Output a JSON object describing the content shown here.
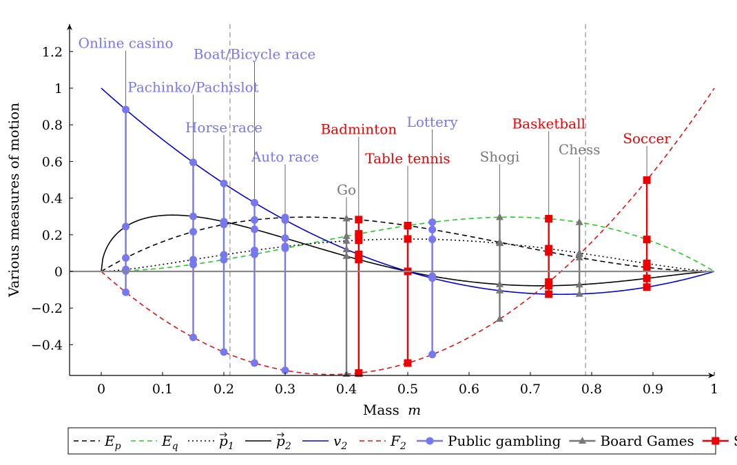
{
  "chart_data": {
    "type": "line",
    "xlabel_text": "Mass",
    "xlabel_var": "m",
    "ylabel": "Various measures of motion",
    "xlim": [
      -0.05,
      1.0
    ],
    "ylim": [
      -0.56,
      1.3
    ],
    "xticks": [
      0,
      0.1,
      0.2,
      0.3,
      0.4,
      0.5,
      0.6,
      0.7,
      0.8,
      0.9,
      1
    ],
    "xtick_labels": [
      "0",
      "0.1",
      "0.2",
      "0.3",
      "0.4",
      "0.5",
      "0.6",
      "0.7",
      "0.8",
      "0.9",
      "1"
    ],
    "yticks": [
      -0.4,
      -0.2,
      0,
      0.2,
      0.4,
      0.6,
      0.8,
      1,
      1.2
    ],
    "ytick_labels": [
      "−0.4",
      "−0.2",
      "0",
      "0.2",
      "0.4",
      "0.6",
      "0.8",
      "1",
      "1.2"
    ],
    "vertical_guides": [
      0.21,
      0.79
    ],
    "curves": [
      {
        "key": "Ep",
        "legend_base": "E",
        "legend_sub": "p",
        "legend_vec": false,
        "color": "#000000",
        "dash": "7,5"
      },
      {
        "key": "Eq",
        "legend_base": "E",
        "legend_sub": "q",
        "legend_vec": false,
        "color": "#22cc22",
        "dash": "7,5"
      },
      {
        "key": "p1",
        "legend_base": "p",
        "legend_sub": "1",
        "legend_vec": true,
        "color": "#000000",
        "dash": "2,4"
      },
      {
        "key": "p2",
        "legend_base": "p",
        "legend_sub": "2",
        "legend_vec": true,
        "color": "#000000",
        "dash": ""
      },
      {
        "key": "v2",
        "legend_base": "v",
        "legend_sub": "2",
        "legend_vec": false,
        "color": "#0000dd",
        "dash": ""
      },
      {
        "key": "F2",
        "legend_base": "F",
        "legend_sub": "2",
        "legend_vec": false,
        "color": "#dd1111",
        "dash": "7,5"
      }
    ],
    "categories": [
      {
        "key": "public",
        "name": "Public gambling",
        "color": "#7777ee",
        "marker": "circle"
      },
      {
        "key": "board",
        "name": "Board Games",
        "color": "#777777",
        "marker": "triangle"
      },
      {
        "key": "sports",
        "name": "Sports",
        "color": "#ee0000",
        "marker": "square"
      }
    ],
    "games": [
      {
        "name": "Online casino",
        "m": 0.04,
        "category": "public",
        "label_y": 1.22
      },
      {
        "name": "Pachinko/Pachislot",
        "m": 0.15,
        "category": "public",
        "label_y": 0.98
      },
      {
        "name": "Horse race",
        "m": 0.2,
        "category": "public",
        "label_y": 0.76
      },
      {
        "name": "Boat/Bicycle race",
        "m": 0.25,
        "category": "public",
        "label_y": 1.16
      },
      {
        "name": "Auto race",
        "m": 0.3,
        "category": "public",
        "label_y": 0.6
      },
      {
        "name": "Go",
        "m": 0.4,
        "category": "board",
        "label_y": 0.42
      },
      {
        "name": "Badminton",
        "m": 0.42,
        "category": "sports",
        "label_y": 0.75
      },
      {
        "name": "Table tennis",
        "m": 0.5,
        "category": "sports",
        "label_y": 0.59
      },
      {
        "name": "Lottery",
        "m": 0.54,
        "category": "public",
        "label_y": 0.79
      },
      {
        "name": "Shogi",
        "m": 0.65,
        "category": "board",
        "label_y": 0.6
      },
      {
        "name": "Basketball",
        "m": 0.73,
        "category": "sports",
        "label_y": 0.78
      },
      {
        "name": "Chess",
        "m": 0.78,
        "category": "board",
        "label_y": 0.64
      },
      {
        "name": "Soccer",
        "m": 0.89,
        "category": "sports",
        "label_y": 0.7
      }
    ]
  }
}
